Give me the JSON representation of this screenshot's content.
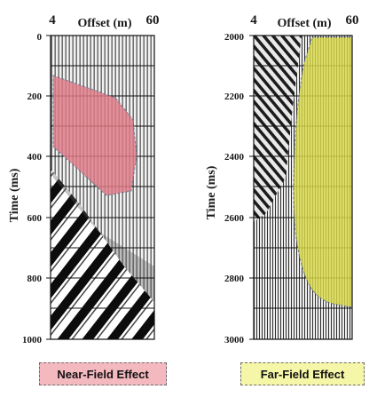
{
  "left_panel": {
    "offset_start": "4",
    "offset_axis_title": "Offset (m)",
    "offset_end": "60",
    "time_axis_title": "Time (ms)",
    "time_ticks": [
      "0",
      "200",
      "400",
      "600",
      "800",
      "1000"
    ],
    "region_color": "#e07a86",
    "caption": "Near-Field Effect",
    "caption_color": "#f4b8bf"
  },
  "right_panel": {
    "offset_start": "4",
    "offset_axis_title": "Offset (m)",
    "offset_end": "60",
    "time_axis_title": "Time (ms)",
    "time_ticks": [
      "2000",
      "2200",
      "2400",
      "2600",
      "2800",
      "3000"
    ],
    "region_color": "#d8d84a",
    "caption": "Far-Field Effect",
    "caption_color": "#f6f6a8"
  }
}
